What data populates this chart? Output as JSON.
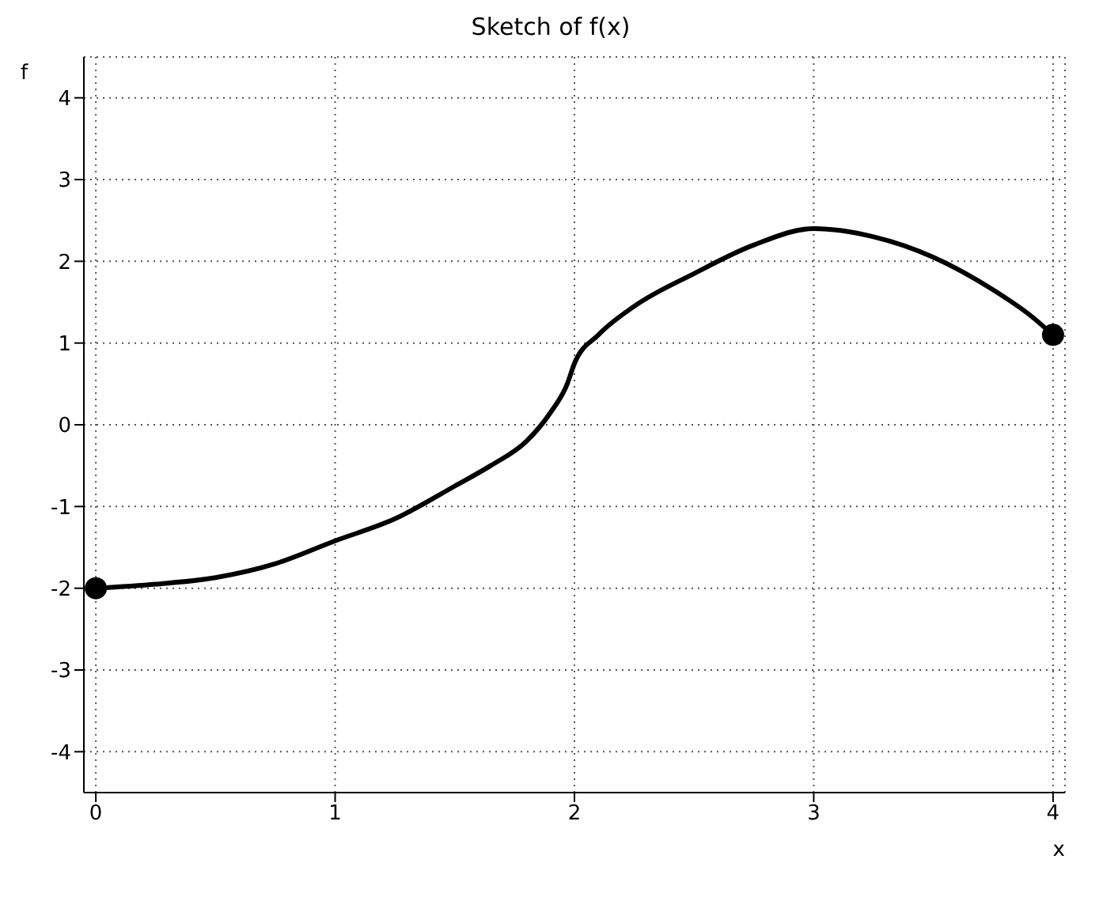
{
  "chart_data": {
    "type": "line",
    "title": "Sketch of f(x)",
    "xlabel": "x",
    "ylabel": "f",
    "series": [
      {
        "color": "#000000",
        "x": [
          0,
          0.25,
          0.5,
          0.75,
          1,
          1.25,
          1.5,
          1.65,
          1.8,
          1.9,
          1.97,
          2,
          2.1,
          2.25,
          2.5,
          2.75,
          3,
          3.25,
          3.5,
          3.75,
          3.9,
          4
        ],
        "values": [
          -2,
          -1.95,
          -1.87,
          -1.7,
          -1.42,
          -1.15,
          -0.75,
          -0.5,
          -0.2,
          0.15,
          0.5,
          0.75,
          1.1,
          1.45,
          1.85,
          2.2,
          2.4,
          2.3,
          2.05,
          1.65,
          1.35,
          1.1
        ]
      },
      {
        "type": "scatter",
        "color": "#000000",
        "x": [
          0,
          4
        ],
        "values": [
          -2,
          1.1
        ]
      }
    ],
    "xlim": [
      -0.05,
      4.05
    ],
    "ylim": [
      -4.5,
      4.5
    ],
    "xticks": [
      0,
      1,
      2,
      3,
      4
    ],
    "yticks": [
      -4,
      -3,
      -2,
      -1,
      0,
      1,
      2,
      3,
      4
    ],
    "grid": true
  }
}
